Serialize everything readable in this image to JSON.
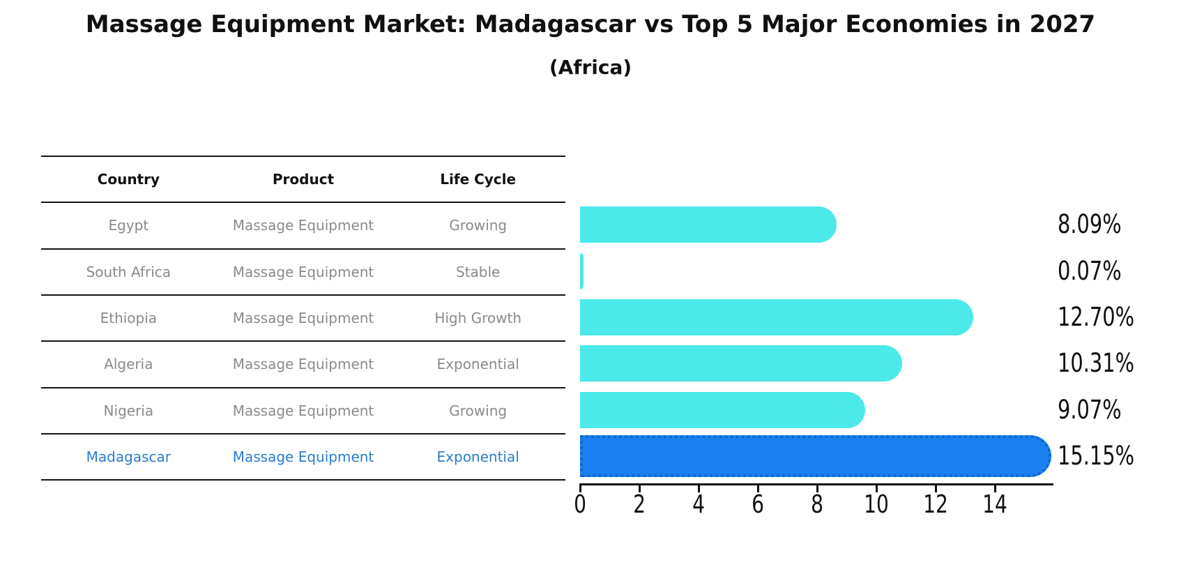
{
  "title": "Massage Equipment Market: Madagascar vs Top 5 Major Economies in 2027",
  "subtitle": "(Africa)",
  "table": {
    "headers": [
      "Country",
      "Product",
      "Life Cycle"
    ],
    "rows": [
      {
        "country": "Egypt",
        "product": "Massage Equipment",
        "life_cycle": "Growing",
        "highlight": false
      },
      {
        "country": "South Africa",
        "product": "Massage Equipment",
        "life_cycle": "Stable",
        "highlight": false
      },
      {
        "country": "Ethiopia",
        "product": "Massage Equipment",
        "life_cycle": "High Growth",
        "highlight": false
      },
      {
        "country": "Algeria",
        "product": "Massage Equipment",
        "life_cycle": "Exponential",
        "highlight": false
      },
      {
        "country": "Nigeria",
        "product": "Massage Equipment",
        "life_cycle": "Growing",
        "highlight": false
      },
      {
        "country": "Madagascar",
        "product": "Massage Equipment",
        "life_cycle": "Exponential",
        "highlight": true
      }
    ]
  },
  "chart_data": {
    "type": "bar",
    "orientation": "horizontal",
    "title": "Massage Equipment Market: Madagascar vs Top 5 Major Economies in 2027",
    "subtitle": "(Africa)",
    "categories": [
      "Egypt",
      "South Africa",
      "Ethiopia",
      "Algeria",
      "Nigeria",
      "Madagascar"
    ],
    "values": [
      8.09,
      0.07,
      12.7,
      10.31,
      9.07,
      15.15
    ],
    "value_labels": [
      "8.09%",
      "0.07%",
      "12.70%",
      "10.31%",
      "9.07%",
      "15.15%"
    ],
    "xlabel": "",
    "ylabel": "",
    "xlim": [
      0,
      16
    ],
    "x_ticks": [
      0,
      2,
      4,
      6,
      8,
      10,
      12,
      14
    ],
    "grid": false,
    "legend": null,
    "highlight_index": 5,
    "colors": {
      "bar": "#4BE9E9",
      "highlight_bar": "#1A80F0",
      "highlight_bar_border": "#0E63CF",
      "row_text": "#8A8A8A",
      "highlight_text": "#2B7BCB",
      "axis": "#111111",
      "label_text": "#111111"
    }
  }
}
